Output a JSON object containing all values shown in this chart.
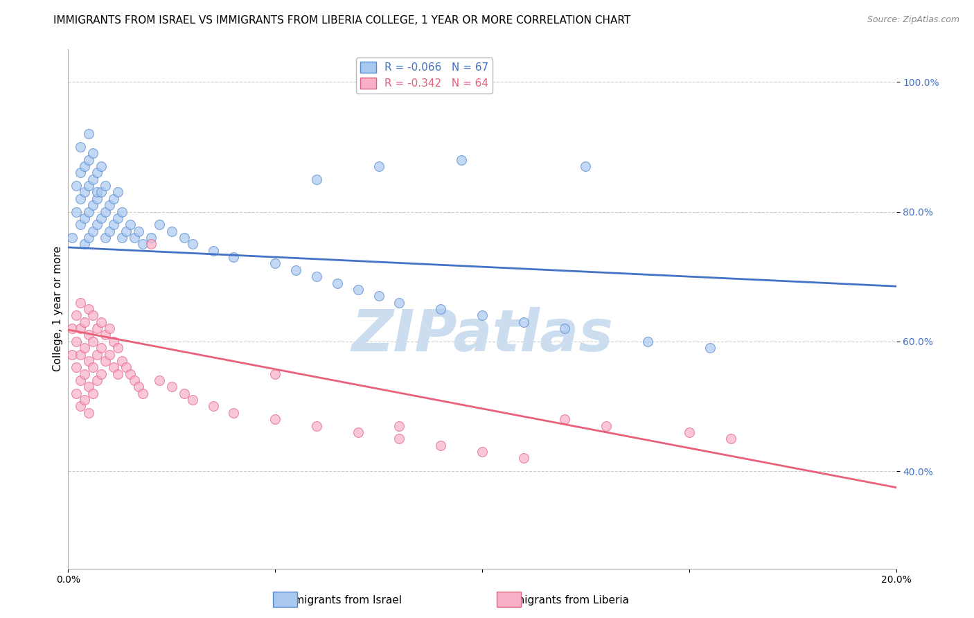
{
  "title": "IMMIGRANTS FROM ISRAEL VS IMMIGRANTS FROM LIBERIA COLLEGE, 1 YEAR OR MORE CORRELATION CHART",
  "source": "Source: ZipAtlas.com",
  "ylabel": "College, 1 year or more",
  "xlim": [
    0.0,
    0.2
  ],
  "ylim": [
    0.25,
    1.05
  ],
  "ytick_vals": [
    0.4,
    0.6,
    0.8,
    1.0
  ],
  "ytick_labels": [
    "40.0%",
    "60.0%",
    "80.0%",
    "100.0%"
  ],
  "xtick_vals": [
    0.0,
    0.05,
    0.1,
    0.15,
    0.2
  ],
  "xtick_labels": [
    "0.0%",
    "",
    "",
    "",
    "20.0%"
  ],
  "israel_fill_color": "#a8c8f0",
  "israel_edge_color": "#5588cc",
  "liberia_fill_color": "#f8b0c8",
  "liberia_edge_color": "#e06080",
  "israel_line_color": "#4472c4",
  "liberia_line_color": "#e8607a",
  "israel_line_y0": 0.745,
  "israel_line_y1": 0.685,
  "liberia_line_y0": 0.618,
  "liberia_line_y1": 0.375,
  "legend_label_israel": "R = -0.066   N = 67",
  "legend_label_liberia": "R = -0.342   N = 64",
  "background_color": "#ffffff",
  "grid_color": "#cccccc",
  "title_fontsize": 11,
  "axis_label_fontsize": 11,
  "tick_fontsize": 10,
  "legend_fontsize": 11,
  "source_fontsize": 9,
  "watermark_text": "ZIPatlas",
  "watermark_color": "#ccddf0",
  "watermark_fontsize": 60,
  "israel_scatter_x": [
    0.001,
    0.002,
    0.002,
    0.003,
    0.003,
    0.003,
    0.003,
    0.004,
    0.004,
    0.004,
    0.004,
    0.005,
    0.005,
    0.005,
    0.005,
    0.005,
    0.006,
    0.006,
    0.006,
    0.006,
    0.007,
    0.007,
    0.007,
    0.007,
    0.008,
    0.008,
    0.008,
    0.009,
    0.009,
    0.009,
    0.01,
    0.01,
    0.011,
    0.011,
    0.012,
    0.012,
    0.013,
    0.013,
    0.014,
    0.015,
    0.016,
    0.017,
    0.018,
    0.02,
    0.022,
    0.025,
    0.028,
    0.03,
    0.035,
    0.04,
    0.05,
    0.055,
    0.06,
    0.065,
    0.07,
    0.075,
    0.08,
    0.09,
    0.1,
    0.11,
    0.12,
    0.14,
    0.155,
    0.06,
    0.075,
    0.095,
    0.125
  ],
  "israel_scatter_y": [
    0.76,
    0.8,
    0.84,
    0.78,
    0.82,
    0.86,
    0.9,
    0.75,
    0.79,
    0.83,
    0.87,
    0.76,
    0.8,
    0.84,
    0.88,
    0.92,
    0.77,
    0.81,
    0.85,
    0.89,
    0.78,
    0.82,
    0.86,
    0.83,
    0.79,
    0.83,
    0.87,
    0.76,
    0.8,
    0.84,
    0.77,
    0.81,
    0.78,
    0.82,
    0.79,
    0.83,
    0.76,
    0.8,
    0.77,
    0.78,
    0.76,
    0.77,
    0.75,
    0.76,
    0.78,
    0.77,
    0.76,
    0.75,
    0.74,
    0.73,
    0.72,
    0.71,
    0.7,
    0.69,
    0.68,
    0.67,
    0.66,
    0.65,
    0.64,
    0.63,
    0.62,
    0.6,
    0.59,
    0.85,
    0.87,
    0.88,
    0.87
  ],
  "liberia_scatter_x": [
    0.001,
    0.001,
    0.002,
    0.002,
    0.002,
    0.002,
    0.003,
    0.003,
    0.003,
    0.003,
    0.003,
    0.004,
    0.004,
    0.004,
    0.004,
    0.005,
    0.005,
    0.005,
    0.005,
    0.005,
    0.006,
    0.006,
    0.006,
    0.006,
    0.007,
    0.007,
    0.007,
    0.008,
    0.008,
    0.008,
    0.009,
    0.009,
    0.01,
    0.01,
    0.011,
    0.011,
    0.012,
    0.012,
    0.013,
    0.014,
    0.015,
    0.016,
    0.017,
    0.018,
    0.02,
    0.022,
    0.025,
    0.028,
    0.03,
    0.035,
    0.04,
    0.05,
    0.06,
    0.07,
    0.08,
    0.09,
    0.1,
    0.11,
    0.12,
    0.13,
    0.15,
    0.16,
    0.05,
    0.08
  ],
  "liberia_scatter_y": [
    0.62,
    0.58,
    0.64,
    0.6,
    0.56,
    0.52,
    0.66,
    0.62,
    0.58,
    0.54,
    0.5,
    0.63,
    0.59,
    0.55,
    0.51,
    0.65,
    0.61,
    0.57,
    0.53,
    0.49,
    0.64,
    0.6,
    0.56,
    0.52,
    0.62,
    0.58,
    0.54,
    0.63,
    0.59,
    0.55,
    0.61,
    0.57,
    0.62,
    0.58,
    0.6,
    0.56,
    0.59,
    0.55,
    0.57,
    0.56,
    0.55,
    0.54,
    0.53,
    0.52,
    0.75,
    0.54,
    0.53,
    0.52,
    0.51,
    0.5,
    0.49,
    0.48,
    0.47,
    0.46,
    0.45,
    0.44,
    0.43,
    0.42,
    0.48,
    0.47,
    0.46,
    0.45,
    0.55,
    0.47
  ]
}
